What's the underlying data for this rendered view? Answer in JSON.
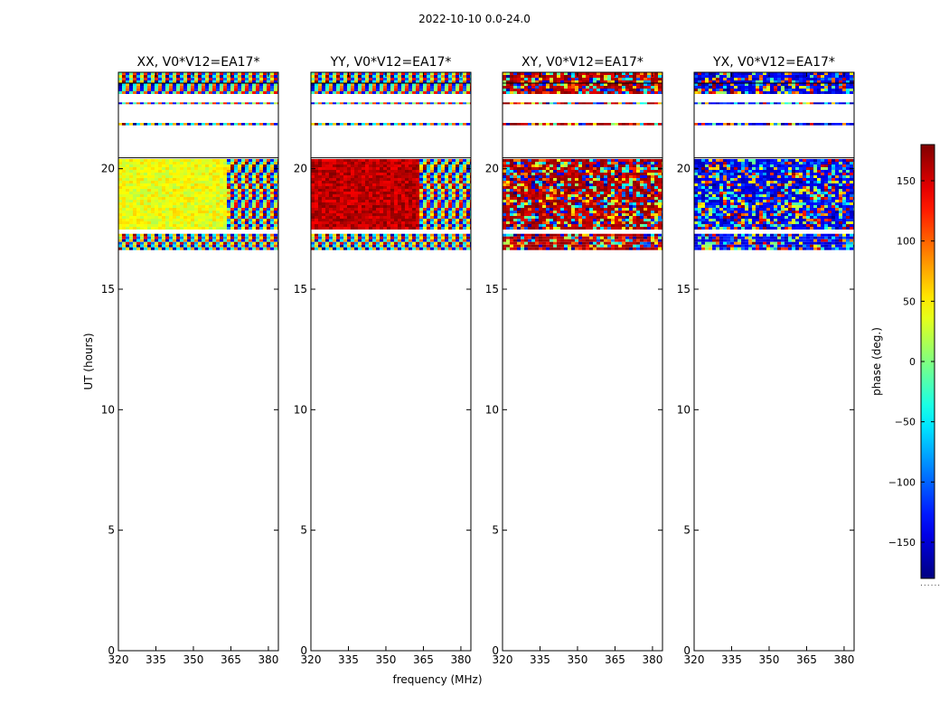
{
  "figure": {
    "suptitle": "2022-10-10 0.0-24.0",
    "ylabel": "UT (hours)",
    "xlabel": "frequency (MHz)",
    "colorbar_label": "phase (deg.)",
    "colorbar_footer": "......"
  },
  "chart_data": {
    "type": "heatmap",
    "colormap": "jet",
    "panels": [
      {
        "title": "XX, V0*V12=EA17*",
        "note": "phase mostly ~20-50 deg below 363 MHz, wrapped fringes above"
      },
      {
        "title": "YY, V0*V12=EA17*",
        "note": "phase mostly ~150-180 deg below 363 MHz, wrapped fringes above"
      },
      {
        "title": "XY, V0*V12=EA17*",
        "note": "noisy phase across band"
      },
      {
        "title": "YX, V0*V12=EA17*",
        "note": "noisy phase, many near -150 deg"
      }
    ],
    "xlim": [
      320,
      384
    ],
    "ylim": [
      0,
      24
    ],
    "xticks": [
      320,
      335,
      350,
      365,
      380
    ],
    "yticks": [
      0,
      5,
      10,
      15,
      20
    ],
    "data_time_ranges_hours": [
      [
        16.7,
        17.3
      ],
      [
        17.5,
        20.4
      ],
      [
        21.8,
        21.9
      ],
      [
        22.7,
        22.75
      ],
      [
        23.1,
        24.0
      ]
    ],
    "colorbar": {
      "min": -180,
      "max": 180,
      "ticks": [
        150,
        100,
        50,
        0,
        -50,
        -100,
        -150
      ]
    }
  }
}
